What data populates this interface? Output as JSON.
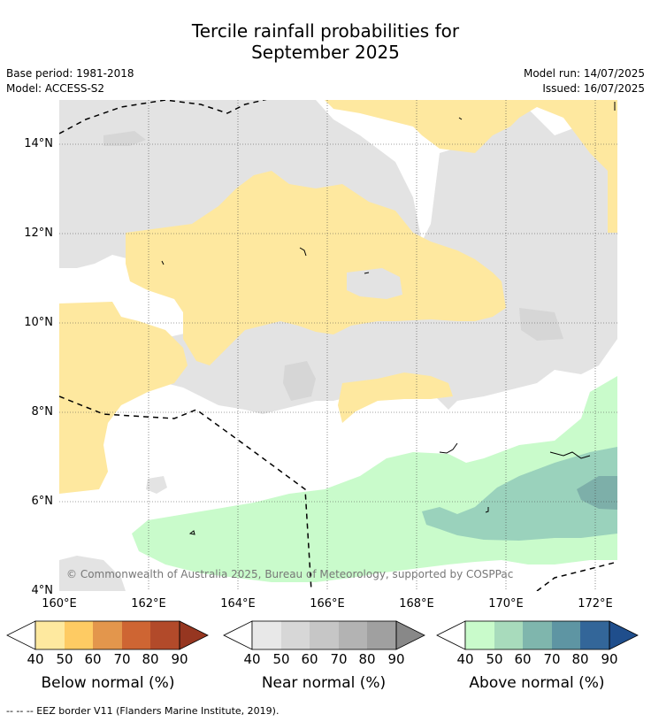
{
  "header": {
    "title_line1": "Tercile rainfall probabilities for",
    "title_line2": "September 2025",
    "base_period": "Base period: 1981-2018",
    "model": "Model: ACCESS-S2",
    "model_run": "Model run: 14/07/2025",
    "issued": "Issued: 16/07/2025"
  },
  "map": {
    "lat_labels": [
      "14°N",
      "12°N",
      "10°N",
      "8°N",
      "6°N",
      "4°N"
    ],
    "lon_labels": [
      "160°E",
      "162°E",
      "164°E",
      "166°E",
      "168°E",
      "170°E",
      "172°E"
    ],
    "copyright": "© Commonwealth of Australia 2025, Bureau of Meteorology, supported by COSPPac",
    "colors": {
      "below_40": "#fee89f",
      "near_40": "#e3e3e3",
      "near_50": "#d6d6d6",
      "above_40": "#c9fbcb",
      "above_50": "#9ad2bc",
      "above_60": "#7dafa9",
      "eez_line": "#000000"
    }
  },
  "colorbars": [
    {
      "title": "Below normal (%)",
      "ticks": [
        "40",
        "50",
        "60",
        "70",
        "80",
        "90"
      ],
      "colors": [
        "#fee99f",
        "#fecb63",
        "#e3964c",
        "#ce6533",
        "#b24a2a",
        "#963620"
      ]
    },
    {
      "title": "Near normal (%)",
      "ticks": [
        "40",
        "50",
        "60",
        "70",
        "80",
        "90"
      ],
      "colors": [
        "#e8e8e8",
        "#d7d7d7",
        "#c6c6c6",
        "#b3b3b3",
        "#a0a0a0",
        "#888888"
      ]
    },
    {
      "title": "Above normal (%)",
      "ticks": [
        "40",
        "50",
        "60",
        "70",
        "80",
        "90"
      ],
      "colors": [
        "#c9fbcb",
        "#a8dbbc",
        "#7fb6ad",
        "#5e95a3",
        "#336699",
        "#1f4e8c"
      ]
    }
  ],
  "footer": {
    "legend_text": "--  --  -- EEZ border V11 (Flanders Marine Institute, 2019)."
  }
}
